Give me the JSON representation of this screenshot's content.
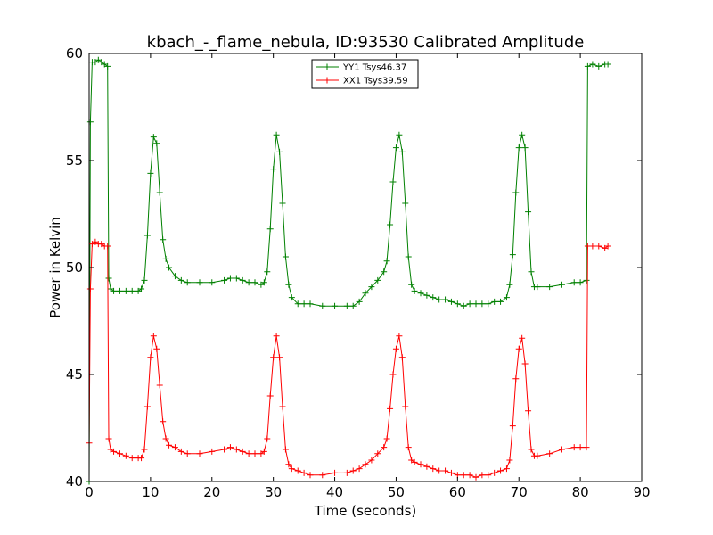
{
  "chart_data": {
    "type": "line",
    "title": "kbach_-_flame_nebula, ID:93530 Calibrated Amplitude",
    "xlabel": "Time (seconds)",
    "ylabel": "Power in Kelvin",
    "xlim": [
      0,
      90
    ],
    "ylim": [
      40,
      60
    ],
    "xticks": [
      "0",
      "10",
      "20",
      "30",
      "40",
      "50",
      "60",
      "70",
      "80",
      "90"
    ],
    "yticks": [
      "40",
      "45",
      "50",
      "55",
      "60"
    ],
    "legend_position": "top-center",
    "grid": false,
    "marker": "+",
    "series": [
      {
        "name": "YY1 Tsys46.37",
        "color": "#008000",
        "points": [
          [
            0,
            40.0
          ],
          [
            0.2,
            56.8
          ],
          [
            0.5,
            59.6
          ],
          [
            1,
            59.6
          ],
          [
            1.5,
            59.7
          ],
          [
            2,
            59.6
          ],
          [
            2.5,
            59.5
          ],
          [
            3,
            59.4
          ],
          [
            3.2,
            49.5
          ],
          [
            3.5,
            49.0
          ],
          [
            4,
            48.9
          ],
          [
            5,
            48.9
          ],
          [
            6,
            48.9
          ],
          [
            7,
            48.9
          ],
          [
            8,
            48.9
          ],
          [
            8.5,
            49.0
          ],
          [
            9,
            49.4
          ],
          [
            9.5,
            51.5
          ],
          [
            10,
            54.4
          ],
          [
            10.5,
            56.1
          ],
          [
            11,
            55.8
          ],
          [
            11.5,
            53.5
          ],
          [
            12,
            51.3
          ],
          [
            12.5,
            50.4
          ],
          [
            13,
            50.0
          ],
          [
            14,
            49.6
          ],
          [
            15,
            49.4
          ],
          [
            16,
            49.3
          ],
          [
            18,
            49.3
          ],
          [
            20,
            49.3
          ],
          [
            22,
            49.4
          ],
          [
            23,
            49.5
          ],
          [
            24,
            49.5
          ],
          [
            25,
            49.4
          ],
          [
            26,
            49.3
          ],
          [
            27,
            49.3
          ],
          [
            28,
            49.2
          ],
          [
            28.5,
            49.3
          ],
          [
            29,
            49.8
          ],
          [
            29.5,
            51.8
          ],
          [
            30,
            54.6
          ],
          [
            30.5,
            56.2
          ],
          [
            31,
            55.4
          ],
          [
            31.5,
            53.0
          ],
          [
            32,
            50.5
          ],
          [
            32.5,
            49.2
          ],
          [
            33,
            48.6
          ],
          [
            34,
            48.3
          ],
          [
            35,
            48.3
          ],
          [
            36,
            48.3
          ],
          [
            38,
            48.2
          ],
          [
            40,
            48.2
          ],
          [
            42,
            48.2
          ],
          [
            43,
            48.2
          ],
          [
            44,
            48.4
          ],
          [
            45,
            48.8
          ],
          [
            46,
            49.1
          ],
          [
            47,
            49.4
          ],
          [
            48,
            49.8
          ],
          [
            48.5,
            50.3
          ],
          [
            49,
            52.0
          ],
          [
            49.5,
            54.0
          ],
          [
            50,
            55.6
          ],
          [
            50.5,
            56.2
          ],
          [
            51,
            55.4
          ],
          [
            51.5,
            53.0
          ],
          [
            52,
            50.5
          ],
          [
            52.5,
            49.2
          ],
          [
            53,
            48.9
          ],
          [
            54,
            48.8
          ],
          [
            55,
            48.7
          ],
          [
            56,
            48.6
          ],
          [
            57,
            48.5
          ],
          [
            58,
            48.5
          ],
          [
            59,
            48.4
          ],
          [
            60,
            48.3
          ],
          [
            61,
            48.2
          ],
          [
            62,
            48.3
          ],
          [
            63,
            48.3
          ],
          [
            64,
            48.3
          ],
          [
            65,
            48.3
          ],
          [
            66,
            48.4
          ],
          [
            67,
            48.4
          ],
          [
            68,
            48.6
          ],
          [
            68.5,
            49.2
          ],
          [
            69,
            50.6
          ],
          [
            69.5,
            53.5
          ],
          [
            70,
            55.6
          ],
          [
            70.5,
            56.2
          ],
          [
            71,
            55.6
          ],
          [
            71.5,
            52.6
          ],
          [
            72,
            49.8
          ],
          [
            72.5,
            49.1
          ],
          [
            73,
            49.1
          ],
          [
            75,
            49.1
          ],
          [
            77,
            49.2
          ],
          [
            79,
            49.3
          ],
          [
            80,
            49.3
          ],
          [
            81,
            49.4
          ],
          [
            81.2,
            59.4
          ],
          [
            82,
            59.5
          ],
          [
            83,
            59.4
          ],
          [
            84,
            59.5
          ],
          [
            84.5,
            59.5
          ]
        ]
      },
      {
        "name": "XX1 Tsys39.59",
        "color": "#ff0000",
        "points": [
          [
            0,
            41.8
          ],
          [
            0.2,
            49.0
          ],
          [
            0.5,
            51.1
          ],
          [
            1,
            51.2
          ],
          [
            1.5,
            51.1
          ],
          [
            2,
            51.1
          ],
          [
            2.5,
            51.0
          ],
          [
            3,
            51.0
          ],
          [
            3.2,
            42.0
          ],
          [
            3.5,
            41.5
          ],
          [
            4,
            41.4
          ],
          [
            5,
            41.3
          ],
          [
            6,
            41.2
          ],
          [
            7,
            41.1
          ],
          [
            8,
            41.1
          ],
          [
            8.5,
            41.1
          ],
          [
            9,
            41.5
          ],
          [
            9.5,
            43.5
          ],
          [
            10,
            45.8
          ],
          [
            10.5,
            46.8
          ],
          [
            11,
            46.2
          ],
          [
            11.5,
            44.5
          ],
          [
            12,
            42.8
          ],
          [
            12.5,
            42.0
          ],
          [
            13,
            41.7
          ],
          [
            14,
            41.6
          ],
          [
            15,
            41.4
          ],
          [
            16,
            41.3
          ],
          [
            18,
            41.3
          ],
          [
            20,
            41.4
          ],
          [
            22,
            41.5
          ],
          [
            23,
            41.6
          ],
          [
            24,
            41.5
          ],
          [
            25,
            41.4
          ],
          [
            26,
            41.3
          ],
          [
            27,
            41.3
          ],
          [
            28,
            41.3
          ],
          [
            28.5,
            41.4
          ],
          [
            29,
            42.0
          ],
          [
            29.5,
            44.0
          ],
          [
            30,
            45.8
          ],
          [
            30.5,
            46.8
          ],
          [
            31,
            45.8
          ],
          [
            31.5,
            43.5
          ],
          [
            32,
            41.5
          ],
          [
            32.5,
            40.8
          ],
          [
            33,
            40.6
          ],
          [
            34,
            40.5
          ],
          [
            35,
            40.4
          ],
          [
            36,
            40.3
          ],
          [
            38,
            40.3
          ],
          [
            40,
            40.4
          ],
          [
            42,
            40.4
          ],
          [
            43,
            40.5
          ],
          [
            44,
            40.6
          ],
          [
            45,
            40.8
          ],
          [
            46,
            41.0
          ],
          [
            47,
            41.3
          ],
          [
            48,
            41.6
          ],
          [
            48.5,
            42.0
          ],
          [
            49,
            43.4
          ],
          [
            49.5,
            45.0
          ],
          [
            50,
            46.2
          ],
          [
            50.5,
            46.8
          ],
          [
            51,
            45.8
          ],
          [
            51.5,
            43.5
          ],
          [
            52,
            41.6
          ],
          [
            52.5,
            41.0
          ],
          [
            53,
            40.9
          ],
          [
            54,
            40.8
          ],
          [
            55,
            40.7
          ],
          [
            56,
            40.6
          ],
          [
            57,
            40.5
          ],
          [
            58,
            40.5
          ],
          [
            59,
            40.4
          ],
          [
            60,
            40.3
          ],
          [
            61,
            40.3
          ],
          [
            62,
            40.3
          ],
          [
            63,
            40.2
          ],
          [
            64,
            40.3
          ],
          [
            65,
            40.3
          ],
          [
            66,
            40.4
          ],
          [
            67,
            40.5
          ],
          [
            68,
            40.6
          ],
          [
            68.5,
            41.0
          ],
          [
            69,
            42.6
          ],
          [
            69.5,
            44.8
          ],
          [
            70,
            46.2
          ],
          [
            70.5,
            46.7
          ],
          [
            71,
            45.5
          ],
          [
            71.5,
            43.3
          ],
          [
            72,
            41.5
          ],
          [
            72.5,
            41.2
          ],
          [
            73,
            41.2
          ],
          [
            75,
            41.3
          ],
          [
            77,
            41.5
          ],
          [
            79,
            41.6
          ],
          [
            80,
            41.6
          ],
          [
            81,
            41.6
          ],
          [
            81.2,
            51.0
          ],
          [
            82,
            51.0
          ],
          [
            83,
            51.0
          ],
          [
            84,
            50.9
          ],
          [
            84.5,
            51.0
          ]
        ]
      }
    ]
  }
}
